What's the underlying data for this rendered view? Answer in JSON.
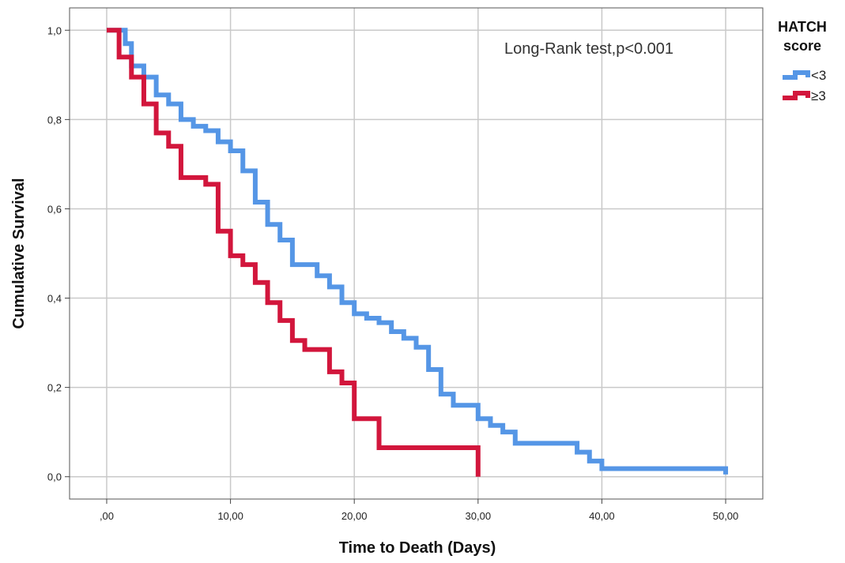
{
  "chart_data": {
    "type": "line",
    "step": true,
    "title": "",
    "xlabel": "Time to Death (Days)",
    "ylabel": "Cumulative Survival",
    "annotation": "Long-Rank test,p<0.001",
    "xlim": [
      -3,
      53
    ],
    "ylim": [
      -0.05,
      1.05
    ],
    "grid": true,
    "x_ticks": [
      0,
      10,
      20,
      30,
      40,
      50
    ],
    "x_tick_labels": [
      ",00",
      "10,00",
      "20,00",
      "30,00",
      "40,00",
      "50,00"
    ],
    "y_ticks": [
      0,
      0.2,
      0.4,
      0.6,
      0.8,
      1.0
    ],
    "y_tick_labels": [
      "0,0",
      "0,2",
      "0,4",
      "0,6",
      "0,8",
      "1,0"
    ],
    "legend": {
      "title_line1": "HATCH",
      "title_line2": "score",
      "placement": "top-right outside"
    },
    "series": [
      {
        "name": "<3",
        "color": "#5596e6",
        "x": [
          0,
          1.5,
          2,
          3,
          4,
          5,
          6,
          7,
          8,
          9,
          10,
          11,
          12,
          13,
          14,
          15,
          16,
          17,
          18,
          19,
          20,
          21,
          22,
          23,
          24,
          25,
          26,
          27,
          28,
          30,
          31,
          32,
          33,
          38,
          39,
          40,
          50
        ],
        "y": [
          1.0,
          0.97,
          0.92,
          0.895,
          0.855,
          0.835,
          0.8,
          0.785,
          0.775,
          0.75,
          0.73,
          0.685,
          0.615,
          0.565,
          0.53,
          0.475,
          0.475,
          0.45,
          0.425,
          0.39,
          0.365,
          0.355,
          0.345,
          0.325,
          0.31,
          0.29,
          0.24,
          0.185,
          0.16,
          0.13,
          0.115,
          0.1,
          0.075,
          0.055,
          0.035,
          0.018,
          0.005
        ]
      },
      {
        "name": "≥3",
        "color": "#d2163c",
        "x": [
          0,
          1,
          2,
          3,
          4,
          5,
          6,
          8,
          9,
          10,
          11,
          12,
          13,
          14,
          15,
          16,
          18,
          19,
          20,
          22,
          30
        ],
        "y": [
          1.0,
          0.94,
          0.895,
          0.835,
          0.77,
          0.74,
          0.67,
          0.655,
          0.55,
          0.495,
          0.475,
          0.435,
          0.39,
          0.35,
          0.305,
          0.285,
          0.235,
          0.21,
          0.13,
          0.065,
          0.0
        ]
      }
    ]
  }
}
